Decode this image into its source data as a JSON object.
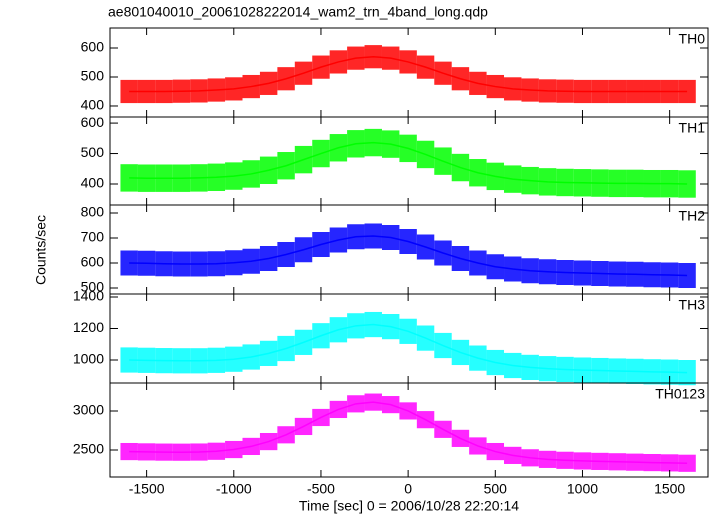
{
  "chart_data": {
    "type": "line",
    "title": "ae801040010_20061028222014_wam2_trn_4band_long.qdp",
    "xlabel": "Time [sec] 0 = 2006/10/28 22:20:14",
    "ylabel": "Counts/sec",
    "xlim": [
      -1710,
      1720
    ],
    "xticks": [
      -1500,
      -1000,
      -500,
      0,
      500,
      1000,
      1500
    ],
    "x": [
      -1600,
      -1500,
      -1400,
      -1300,
      -1200,
      -1100,
      -1000,
      -900,
      -800,
      -700,
      -600,
      -500,
      -400,
      -300,
      -200,
      -100,
      0,
      100,
      200,
      300,
      400,
      500,
      600,
      700,
      800,
      900,
      1000,
      1100,
      1200,
      1300,
      1400,
      1500,
      1600
    ],
    "panels": [
      {
        "name": "TH0",
        "color": "#ff0000",
        "error": 40,
        "ylim": [
          362,
          669
        ],
        "yticks": [
          400,
          500,
          600
        ],
        "values": [
          450,
          450,
          450,
          451,
          452,
          455,
          459,
          467,
          478,
          494,
          513,
          534,
          552,
          565,
          570,
          565,
          552,
          534,
          513,
          494,
          478,
          467,
          459,
          455,
          452,
          451,
          450,
          450,
          450,
          450,
          450,
          450,
          450
        ]
      },
      {
        "name": "TH1",
        "color": "#00ff00",
        "error": 45,
        "ylim": [
          331,
          620
        ],
        "yticks": [
          400,
          500,
          600
        ],
        "values": [
          420,
          419,
          419,
          419,
          420,
          422,
          426,
          433,
          445,
          460,
          480,
          500,
          519,
          532,
          536,
          531,
          517,
          497,
          475,
          454,
          437,
          425,
          416,
          411,
          407,
          405,
          404,
          403,
          402,
          402,
          401,
          401,
          400
        ]
      },
      {
        "name": "TH2",
        "color": "#0000ff",
        "error": 50,
        "ylim": [
          476,
          832
        ],
        "yticks": [
          500,
          600,
          700,
          800
        ],
        "values": [
          600,
          599,
          597,
          596,
          596,
          597,
          601,
          607,
          618,
          634,
          653,
          674,
          692,
          705,
          708,
          702,
          686,
          664,
          640,
          618,
          600,
          585,
          576,
          569,
          565,
          562,
          560,
          558,
          556,
          555,
          553,
          552,
          550
        ]
      },
      {
        "name": "TH3",
        "color": "#00ffff",
        "error": 80,
        "ylim": [
          854,
          1419
        ],
        "yticks": [
          1000,
          1200,
          1400
        ],
        "values": [
          1000,
          998,
          996,
          995,
          995,
          998,
          1005,
          1019,
          1042,
          1073,
          1112,
          1154,
          1192,
          1217,
          1225,
          1212,
          1182,
          1139,
          1092,
          1048,
          1012,
          984,
          965,
          953,
          945,
          940,
          936,
          933,
          930,
          928,
          925,
          923,
          920
        ]
      },
      {
        "name": "TH0123",
        "color": "#ff00ff",
        "error": 110,
        "ylim": [
          2154,
          3359
        ],
        "yticks": [
          2500,
          3000
        ],
        "values": [
          2480,
          2476,
          2473,
          2472,
          2474,
          2484,
          2506,
          2546,
          2608,
          2695,
          2802,
          2917,
          3020,
          3092,
          3114,
          3082,
          3001,
          2889,
          2765,
          2649,
          2552,
          2480,
          2431,
          2400,
          2380,
          2368,
          2360,
          2354,
          2349,
          2344,
          2339,
          2335,
          2330
        ]
      }
    ]
  }
}
